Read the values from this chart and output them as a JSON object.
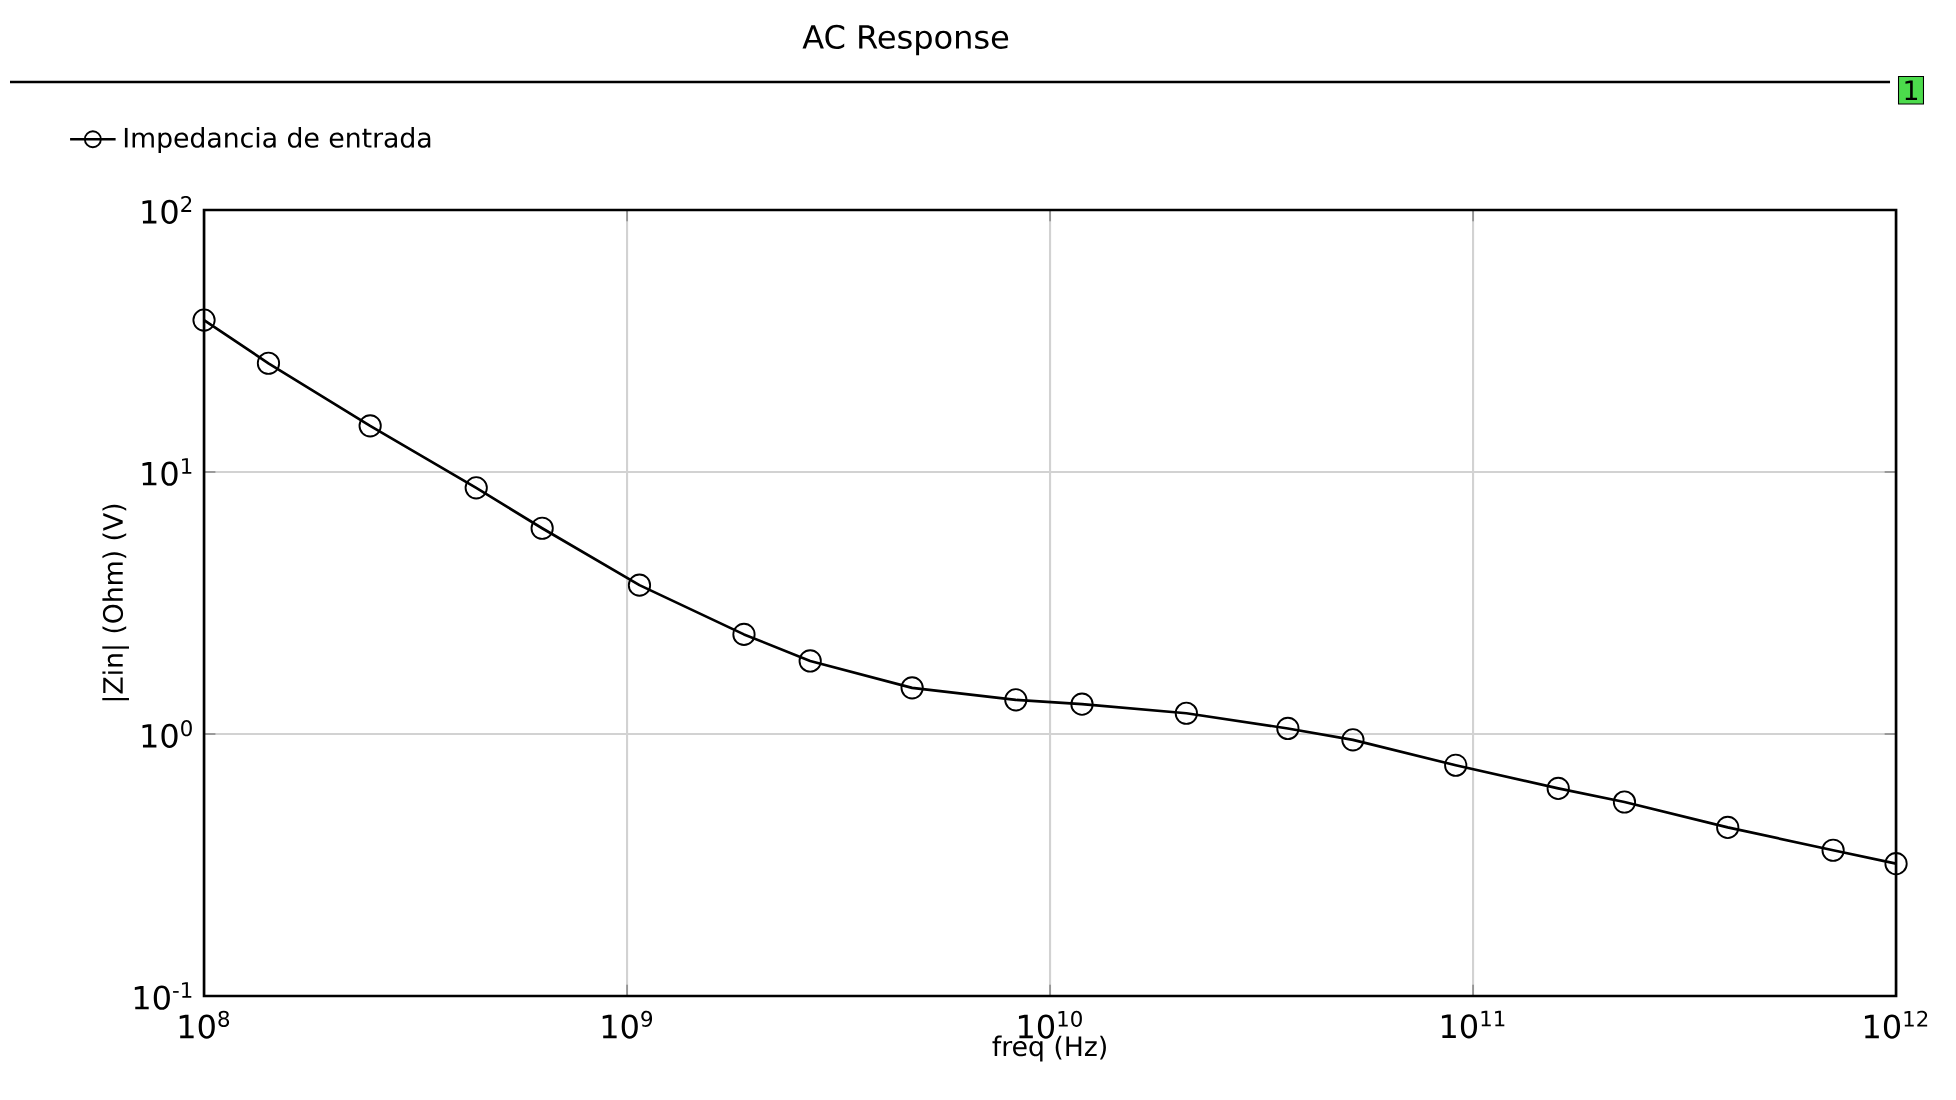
{
  "chart_data": {
    "type": "line",
    "title": "AC Response",
    "xlabel": "freq (Hz)",
    "ylabel": "|Zin| (Ohm) (V)",
    "log": "xy",
    "grid": true,
    "legend": "top left",
    "marker": "circle",
    "line_style": "solid",
    "xlim": [
      100000000,
      1000000000000
    ],
    "ylim": [
      0.1,
      100
    ],
    "xticks": [
      {
        "value": 100000000,
        "label": "10$^{8}$"
      },
      {
        "value": 1000000000,
        "label": "10$^{9}$"
      },
      {
        "value": 10000000000,
        "label": "10$^{10}$"
      },
      {
        "value": 100000000000,
        "label": "10$^{11}$"
      },
      {
        "value": 1000000000000,
        "label": "10$^{12}$"
      }
    ],
    "yticks": [
      {
        "value": 0.1,
        "label": "10$^{-1}$"
      },
      {
        "value": 1,
        "label": "10$^{0}$"
      },
      {
        "value": 10,
        "label": "10$^{1}$"
      },
      {
        "value": 100,
        "label": "10$^{2}$"
      }
    ],
    "x": [
      100000000,
      142000000,
      247000000,
      440000000,
      630000000,
      1070000000,
      1890000000,
      2710000000,
      4720000000,
      8300000000,
      11900000000,
      21000000000,
      36500000000,
      52000000000,
      91000000000,
      159000000000,
      228000000000,
      400000000000,
      710000000000,
      1000000000000
    ],
    "series": [
      {
        "name": "Impedancia de entrada",
        "color": "#000000",
        "values": [
          38,
          26,
          15,
          8.7,
          6.1,
          3.7,
          2.4,
          1.9,
          1.5,
          1.35,
          1.3,
          1.2,
          1.05,
          0.95,
          0.76,
          0.62,
          0.55,
          0.44,
          0.36,
          0.32
        ]
      }
    ],
    "annotations": [
      "1"
    ]
  }
}
